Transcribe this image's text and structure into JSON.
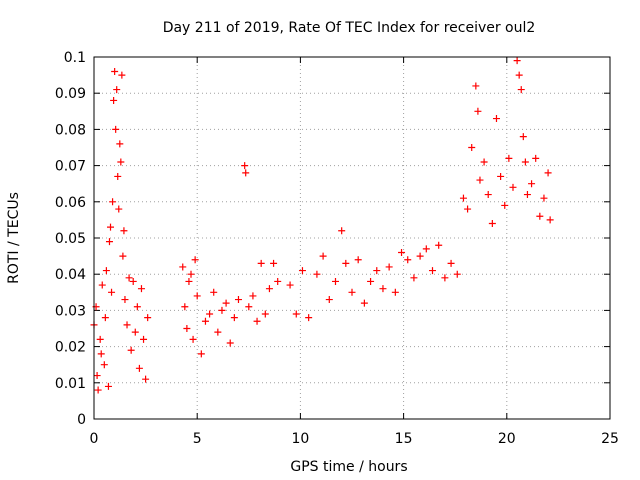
{
  "chart_data": {
    "type": "scatter",
    "title": "Day 211 of 2019, Rate Of TEC Index for receiver oul2",
    "xlabel": "GPS time / hours",
    "ylabel": "ROTI / TECUs",
    "xlim": [
      0,
      25
    ],
    "ylim": [
      0,
      0.1
    ],
    "xticks": [
      "0",
      "5",
      "10",
      "15",
      "20",
      "25"
    ],
    "yticks": [
      "0",
      "0.01",
      "0.02",
      "0.03",
      "0.04",
      "0.05",
      "0.06",
      "0.07",
      "0.08",
      "0.09",
      "0.1"
    ],
    "grid": true,
    "marker": "+",
    "color": "#ff0000",
    "points": [
      [
        0.0,
        0.026
      ],
      [
        0.1,
        0.031
      ],
      [
        0.15,
        0.012
      ],
      [
        0.2,
        0.008
      ],
      [
        0.3,
        0.022
      ],
      [
        0.35,
        0.018
      ],
      [
        0.4,
        0.037
      ],
      [
        0.5,
        0.015
      ],
      [
        0.55,
        0.028
      ],
      [
        0.6,
        0.041
      ],
      [
        0.7,
        0.009
      ],
      [
        0.75,
        0.049
      ],
      [
        0.8,
        0.053
      ],
      [
        0.85,
        0.035
      ],
      [
        0.9,
        0.06
      ],
      [
        0.95,
        0.088
      ],
      [
        1.0,
        0.096
      ],
      [
        1.05,
        0.08
      ],
      [
        1.1,
        0.091
      ],
      [
        1.15,
        0.067
      ],
      [
        1.2,
        0.058
      ],
      [
        1.25,
        0.076
      ],
      [
        1.3,
        0.071
      ],
      [
        1.35,
        0.095
      ],
      [
        1.4,
        0.045
      ],
      [
        1.45,
        0.052
      ],
      [
        1.5,
        0.033
      ],
      [
        1.6,
        0.026
      ],
      [
        1.7,
        0.039
      ],
      [
        1.8,
        0.019
      ],
      [
        1.9,
        0.038
      ],
      [
        2.0,
        0.024
      ],
      [
        2.1,
        0.031
      ],
      [
        2.2,
        0.014
      ],
      [
        2.3,
        0.036
      ],
      [
        2.4,
        0.022
      ],
      [
        2.5,
        0.011
      ],
      [
        2.6,
        0.028
      ],
      [
        4.3,
        0.042
      ],
      [
        4.4,
        0.031
      ],
      [
        4.5,
        0.025
      ],
      [
        4.6,
        0.038
      ],
      [
        4.7,
        0.04
      ],
      [
        4.8,
        0.022
      ],
      [
        4.9,
        0.044
      ],
      [
        5.0,
        0.034
      ],
      [
        5.2,
        0.018
      ],
      [
        5.4,
        0.027
      ],
      [
        5.6,
        0.029
      ],
      [
        5.8,
        0.035
      ],
      [
        6.0,
        0.024
      ],
      [
        6.2,
        0.03
      ],
      [
        6.4,
        0.032
      ],
      [
        6.6,
        0.021
      ],
      [
        6.8,
        0.028
      ],
      [
        7.0,
        0.033
      ],
      [
        7.3,
        0.07
      ],
      [
        7.35,
        0.068
      ],
      [
        7.5,
        0.031
      ],
      [
        7.7,
        0.034
      ],
      [
        7.9,
        0.027
      ],
      [
        8.1,
        0.043
      ],
      [
        8.3,
        0.029
      ],
      [
        8.5,
        0.036
      ],
      [
        8.7,
        0.043
      ],
      [
        8.9,
        0.038
      ],
      [
        9.5,
        0.037
      ],
      [
        9.8,
        0.029
      ],
      [
        10.1,
        0.041
      ],
      [
        10.4,
        0.028
      ],
      [
        10.8,
        0.04
      ],
      [
        11.1,
        0.045
      ],
      [
        11.4,
        0.033
      ],
      [
        11.7,
        0.038
      ],
      [
        12.0,
        0.052
      ],
      [
        12.2,
        0.043
      ],
      [
        12.5,
        0.035
      ],
      [
        12.8,
        0.044
      ],
      [
        13.1,
        0.032
      ],
      [
        13.4,
        0.038
      ],
      [
        13.7,
        0.041
      ],
      [
        14.0,
        0.036
      ],
      [
        14.3,
        0.042
      ],
      [
        14.6,
        0.035
      ],
      [
        14.9,
        0.046
      ],
      [
        15.2,
        0.044
      ],
      [
        15.5,
        0.039
      ],
      [
        15.8,
        0.045
      ],
      [
        16.1,
        0.047
      ],
      [
        16.4,
        0.041
      ],
      [
        16.7,
        0.048
      ],
      [
        17.0,
        0.039
      ],
      [
        17.3,
        0.043
      ],
      [
        17.6,
        0.04
      ],
      [
        17.9,
        0.061
      ],
      [
        18.1,
        0.058
      ],
      [
        18.3,
        0.075
      ],
      [
        18.5,
        0.092
      ],
      [
        18.6,
        0.085
      ],
      [
        18.7,
        0.066
      ],
      [
        18.9,
        0.071
      ],
      [
        19.1,
        0.062
      ],
      [
        19.3,
        0.054
      ],
      [
        19.5,
        0.083
      ],
      [
        19.7,
        0.067
      ],
      [
        19.9,
        0.059
      ],
      [
        20.1,
        0.072
      ],
      [
        20.3,
        0.064
      ],
      [
        20.5,
        0.099
      ],
      [
        20.6,
        0.095
      ],
      [
        20.7,
        0.091
      ],
      [
        20.8,
        0.078
      ],
      [
        20.9,
        0.071
      ],
      [
        21.0,
        0.062
      ],
      [
        21.2,
        0.065
      ],
      [
        21.4,
        0.072
      ],
      [
        21.6,
        0.056
      ],
      [
        21.8,
        0.061
      ],
      [
        22.0,
        0.068
      ],
      [
        22.1,
        0.055
      ]
    ]
  }
}
